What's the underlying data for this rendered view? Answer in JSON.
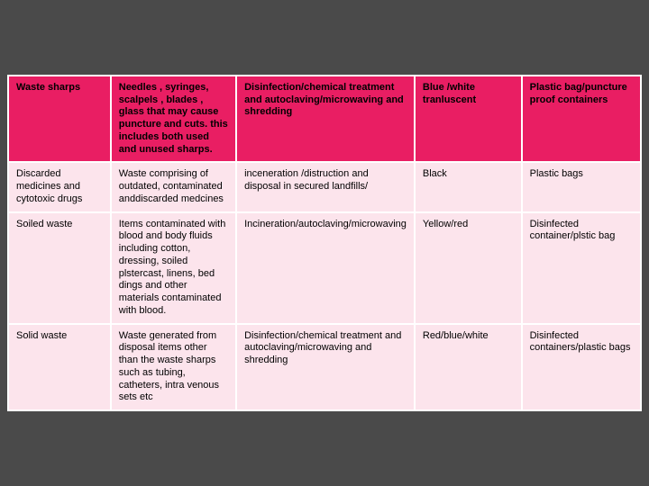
{
  "table": {
    "colors": {
      "header_bg": "#e91e63",
      "body_bg": "#fce4ec",
      "border": "#ffffff",
      "page_bg": "#4a4a4a",
      "text": "#000000"
    },
    "header": {
      "c0": "Waste sharps",
      "c1": "Needles , syringes, scalpels , blades , glass that may cause puncture and cuts. this includes both used and unused sharps.",
      "c2": "Disinfection/chemical treatment and autoclaving/microwaving and shredding",
      "c3": "Blue /white tranluscent",
      "c4": "Plastic bag/puncture proof containers"
    },
    "rows": [
      {
        "c0": "Discarded medicines and cytotoxic drugs",
        "c1": "Waste comprising of outdated, contaminated anddiscarded medcines",
        "c2": "inceneration /distruction and disposal in secured landfills/",
        "c3": "Black",
        "c4": "Plastic bags"
      },
      {
        "c0": "Soiled waste",
        "c1": "Items contaminated with blood and body fluids including cotton, dressing, soiled plstercast, linens, bed dings and other materials contaminated with blood.",
        "c2": "Incineration/autoclaving/microwaving",
        "c3": "Yellow/red",
        "c4": "Disinfected container/plstic bag"
      },
      {
        "c0": "Solid waste",
        "c1": "Waste generated from disposal items other than the waste sharps  such as tubing, catheters, intra venous sets etc",
        "c2": "Disinfection/chemical treatment and autoclaving/microwaving and shredding",
        "c3": "Red/blue/white",
        "c4": "Disinfected containers/plastic bags"
      }
    ]
  }
}
